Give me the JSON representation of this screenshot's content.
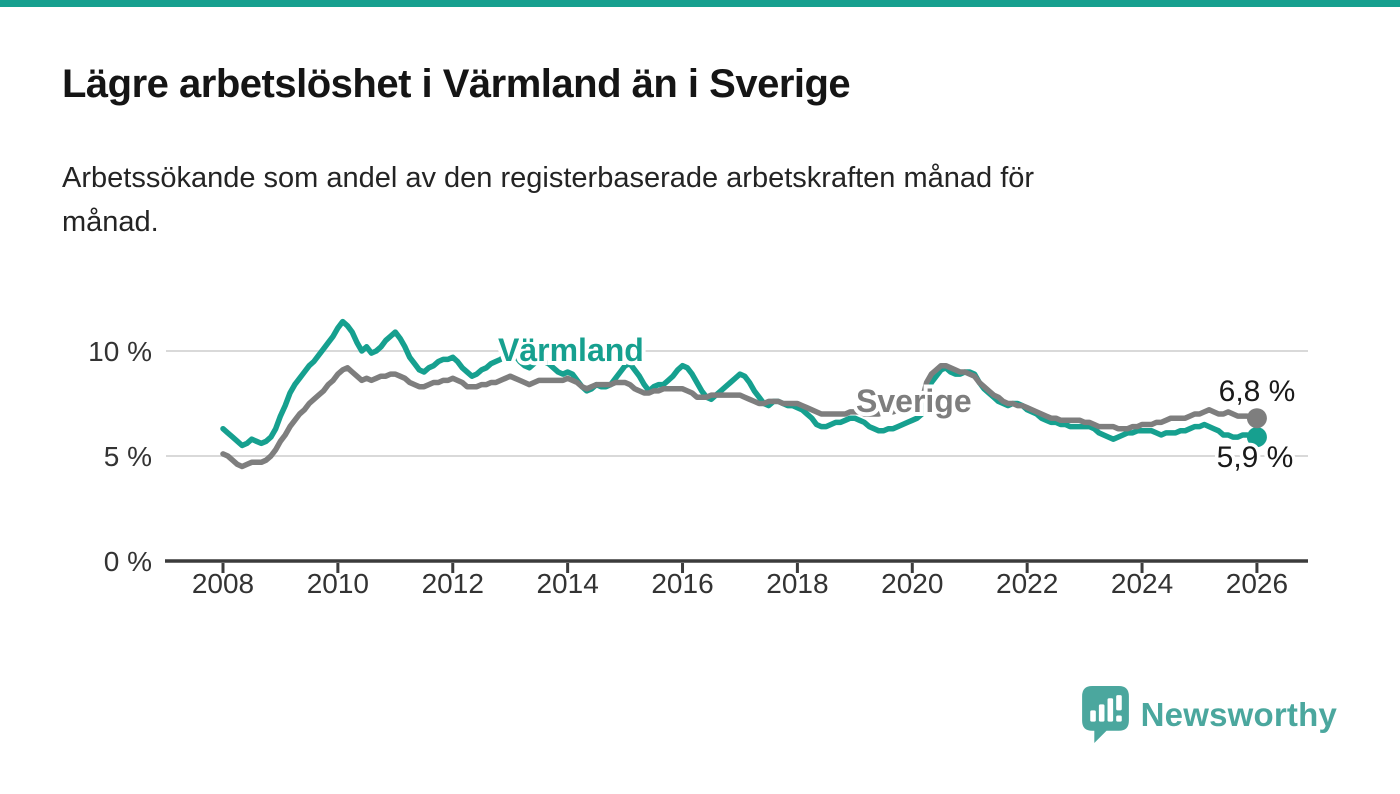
{
  "accent_color": "#16A08F",
  "gray_color": "#7E7E7E",
  "text_color": "#151515",
  "header": {
    "title": "Lägre arbetslöshet i Värmland än i Sverige",
    "subtitle_lines": [
      "Arbetssökande som andel av den registerbaserade arbetskraften månad för",
      "månad."
    ]
  },
  "chart_data": {
    "type": "line",
    "title": "",
    "xlabel": "",
    "ylabel": "",
    "unit": "%",
    "grid": "horizontal",
    "ylim": [
      0,
      12
    ],
    "start_year": 2008,
    "points_per_month": 1,
    "x_ticks": [
      2008,
      2010,
      2012,
      2014,
      2016,
      2018,
      2020,
      2022,
      2024,
      2026
    ],
    "y_ticks": [
      {
        "value": 0,
        "label": "0 %"
      },
      {
        "value": 5,
        "label": "5 %"
      },
      {
        "value": 10,
        "label": "10 %"
      }
    ],
    "series": [
      {
        "name": "Värmland",
        "color": "#16A08F",
        "end_label": "5,9 %",
        "values": [
          6.3,
          6.1,
          5.9,
          5.7,
          5.5,
          5.6,
          5.8,
          5.7,
          5.6,
          5.7,
          5.9,
          6.3,
          6.9,
          7.4,
          8.0,
          8.4,
          8.7,
          9.0,
          9.3,
          9.5,
          9.8,
          10.1,
          10.4,
          10.7,
          11.1,
          11.4,
          11.2,
          10.9,
          10.4,
          10.0,
          10.2,
          9.9,
          10.0,
          10.2,
          10.5,
          10.7,
          10.9,
          10.6,
          10.2,
          9.7,
          9.4,
          9.1,
          9.0,
          9.2,
          9.3,
          9.5,
          9.6,
          9.6,
          9.7,
          9.5,
          9.2,
          9.0,
          8.8,
          8.9,
          9.1,
          9.2,
          9.4,
          9.5,
          9.6,
          9.8,
          9.9,
          9.8,
          9.5,
          9.3,
          9.2,
          9.4,
          9.6,
          9.5,
          9.4,
          9.2,
          9.0,
          8.9,
          9.0,
          8.9,
          8.6,
          8.3,
          8.1,
          8.2,
          8.4,
          8.3,
          8.3,
          8.4,
          8.7,
          9.0,
          9.3,
          9.4,
          9.1,
          8.8,
          8.4,
          8.1,
          8.3,
          8.4,
          8.4,
          8.6,
          8.8,
          9.1,
          9.3,
          9.2,
          8.9,
          8.5,
          8.1,
          7.8,
          7.7,
          7.9,
          8.1,
          8.3,
          8.5,
          8.7,
          8.9,
          8.8,
          8.5,
          8.1,
          7.8,
          7.5,
          7.4,
          7.6,
          7.6,
          7.5,
          7.4,
          7.4,
          7.3,
          7.2,
          7.0,
          6.8,
          6.5,
          6.4,
          6.4,
          6.5,
          6.6,
          6.6,
          6.7,
          6.8,
          6.8,
          6.7,
          6.6,
          6.4,
          6.3,
          6.2,
          6.2,
          6.3,
          6.3,
          6.4,
          6.5,
          6.6,
          6.7,
          6.8,
          7.0,
          8.0,
          8.5,
          8.8,
          9.1,
          9.2,
          9.0,
          8.9,
          8.9,
          9.0,
          9.0,
          8.9,
          8.5,
          8.2,
          8.0,
          7.8,
          7.6,
          7.5,
          7.4,
          7.5,
          7.5,
          7.4,
          7.2,
          7.1,
          7.0,
          6.8,
          6.7,
          6.6,
          6.6,
          6.5,
          6.5,
          6.4,
          6.4,
          6.4,
          6.4,
          6.4,
          6.3,
          6.1,
          6.0,
          5.9,
          5.8,
          5.9,
          6.0,
          6.1,
          6.1,
          6.2,
          6.2,
          6.2,
          6.2,
          6.1,
          6.0,
          6.1,
          6.1,
          6.1,
          6.2,
          6.2,
          6.3,
          6.4,
          6.4,
          6.5,
          6.4,
          6.3,
          6.2,
          6.0,
          6.0,
          5.9,
          5.9,
          6.0,
          6.0,
          5.9,
          5.9
        ]
      },
      {
        "name": "Sverige",
        "color": "#7E7E7E",
        "end_label": "6,8 %",
        "values": [
          5.1,
          5.0,
          4.8,
          4.6,
          4.5,
          4.6,
          4.7,
          4.7,
          4.7,
          4.8,
          5.0,
          5.3,
          5.7,
          6.0,
          6.4,
          6.7,
          7.0,
          7.2,
          7.5,
          7.7,
          7.9,
          8.1,
          8.4,
          8.6,
          8.9,
          9.1,
          9.2,
          9.0,
          8.8,
          8.6,
          8.7,
          8.6,
          8.7,
          8.8,
          8.8,
          8.9,
          8.9,
          8.8,
          8.7,
          8.5,
          8.4,
          8.3,
          8.3,
          8.4,
          8.5,
          8.5,
          8.6,
          8.6,
          8.7,
          8.6,
          8.5,
          8.3,
          8.3,
          8.3,
          8.4,
          8.4,
          8.5,
          8.5,
          8.6,
          8.7,
          8.8,
          8.7,
          8.6,
          8.5,
          8.4,
          8.5,
          8.6,
          8.6,
          8.6,
          8.6,
          8.6,
          8.6,
          8.7,
          8.6,
          8.5,
          8.3,
          8.2,
          8.3,
          8.4,
          8.4,
          8.4,
          8.4,
          8.5,
          8.5,
          8.5,
          8.4,
          8.2,
          8.1,
          8.0,
          8.0,
          8.1,
          8.1,
          8.2,
          8.2,
          8.2,
          8.2,
          8.2,
          8.1,
          8.0,
          7.8,
          7.8,
          7.8,
          7.9,
          7.9,
          7.9,
          7.9,
          7.9,
          7.9,
          7.9,
          7.8,
          7.7,
          7.6,
          7.5,
          7.5,
          7.6,
          7.6,
          7.6,
          7.5,
          7.5,
          7.5,
          7.5,
          7.4,
          7.3,
          7.2,
          7.1,
          7.0,
          7.0,
          7.0,
          7.0,
          7.0,
          7.0,
          7.1,
          7.1,
          7.1,
          7.0,
          7.0,
          7.0,
          7.0,
          7.1,
          7.1,
          7.1,
          7.2,
          7.2,
          7.3,
          7.4,
          7.4,
          7.6,
          8.5,
          8.9,
          9.1,
          9.3,
          9.3,
          9.2,
          9.1,
          9.0,
          9.0,
          8.9,
          8.8,
          8.5,
          8.3,
          8.1,
          7.9,
          7.8,
          7.6,
          7.5,
          7.5,
          7.4,
          7.4,
          7.3,
          7.2,
          7.1,
          7.0,
          6.9,
          6.8,
          6.8,
          6.7,
          6.7,
          6.7,
          6.7,
          6.7,
          6.6,
          6.6,
          6.5,
          6.4,
          6.4,
          6.4,
          6.4,
          6.3,
          6.3,
          6.3,
          6.4,
          6.4,
          6.5,
          6.5,
          6.5,
          6.6,
          6.6,
          6.7,
          6.8,
          6.8,
          6.8,
          6.8,
          6.9,
          7.0,
          7.0,
          7.1,
          7.2,
          7.1,
          7.0,
          7.0,
          7.1,
          7.0,
          6.9,
          6.9,
          6.9,
          6.8,
          6.8
        ]
      }
    ]
  },
  "logo": {
    "text": "Newsworthy",
    "color": "#4BA79E"
  }
}
